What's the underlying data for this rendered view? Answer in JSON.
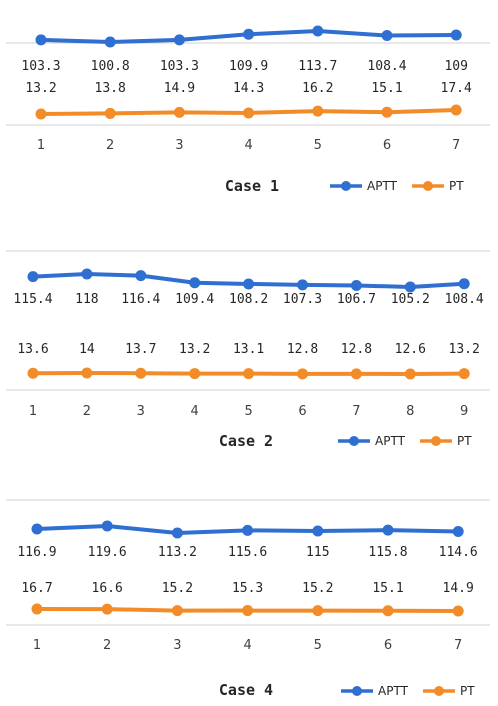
{
  "colors": {
    "aptt": "#2E6FD1",
    "pt": "#F28C28",
    "axis": "#D0D0D0"
  },
  "chart_data": [
    {
      "type": "line",
      "title": "Case 1",
      "categories": [
        "1",
        "2",
        "3",
        "4",
        "5",
        "6",
        "7"
      ],
      "series": [
        {
          "name": "APTT",
          "values": [
            103.3,
            100.8,
            103.3,
            109.9,
            113.7,
            108.4,
            109
          ]
        },
        {
          "name": "PT",
          "values": [
            13.2,
            13.8,
            14.9,
            14.3,
            16.2,
            15.1,
            17.4
          ]
        }
      ],
      "legend_position": "bottom-right",
      "data_labels": true,
      "grid": false
    },
    {
      "type": "line",
      "title": "Case 2",
      "categories": [
        "1",
        "2",
        "3",
        "4",
        "5",
        "6",
        "7",
        "8",
        "9"
      ],
      "series": [
        {
          "name": "APTT",
          "values": [
            115.4,
            118,
            116.4,
            109.4,
            108.2,
            107.3,
            106.7,
            105.2,
            108.4
          ]
        },
        {
          "name": "PT",
          "values": [
            13.6,
            14,
            13.7,
            13.2,
            13.1,
            12.8,
            12.8,
            12.6,
            13.2
          ]
        }
      ],
      "legend_position": "bottom-right",
      "data_labels": true,
      "grid": false
    },
    {
      "type": "line",
      "title": "Case 4",
      "categories": [
        "1",
        "2",
        "3",
        "4",
        "5",
        "6",
        "7"
      ],
      "series": [
        {
          "name": "APTT",
          "values": [
            116.9,
            119.6,
            113.2,
            115.6,
            115,
            115.8,
            114.6
          ]
        },
        {
          "name": "PT",
          "values": [
            16.7,
            16.6,
            15.2,
            15.3,
            15.2,
            15.1,
            14.9
          ]
        }
      ],
      "legend_position": "bottom-right",
      "data_labels": true,
      "grid": false
    }
  ]
}
